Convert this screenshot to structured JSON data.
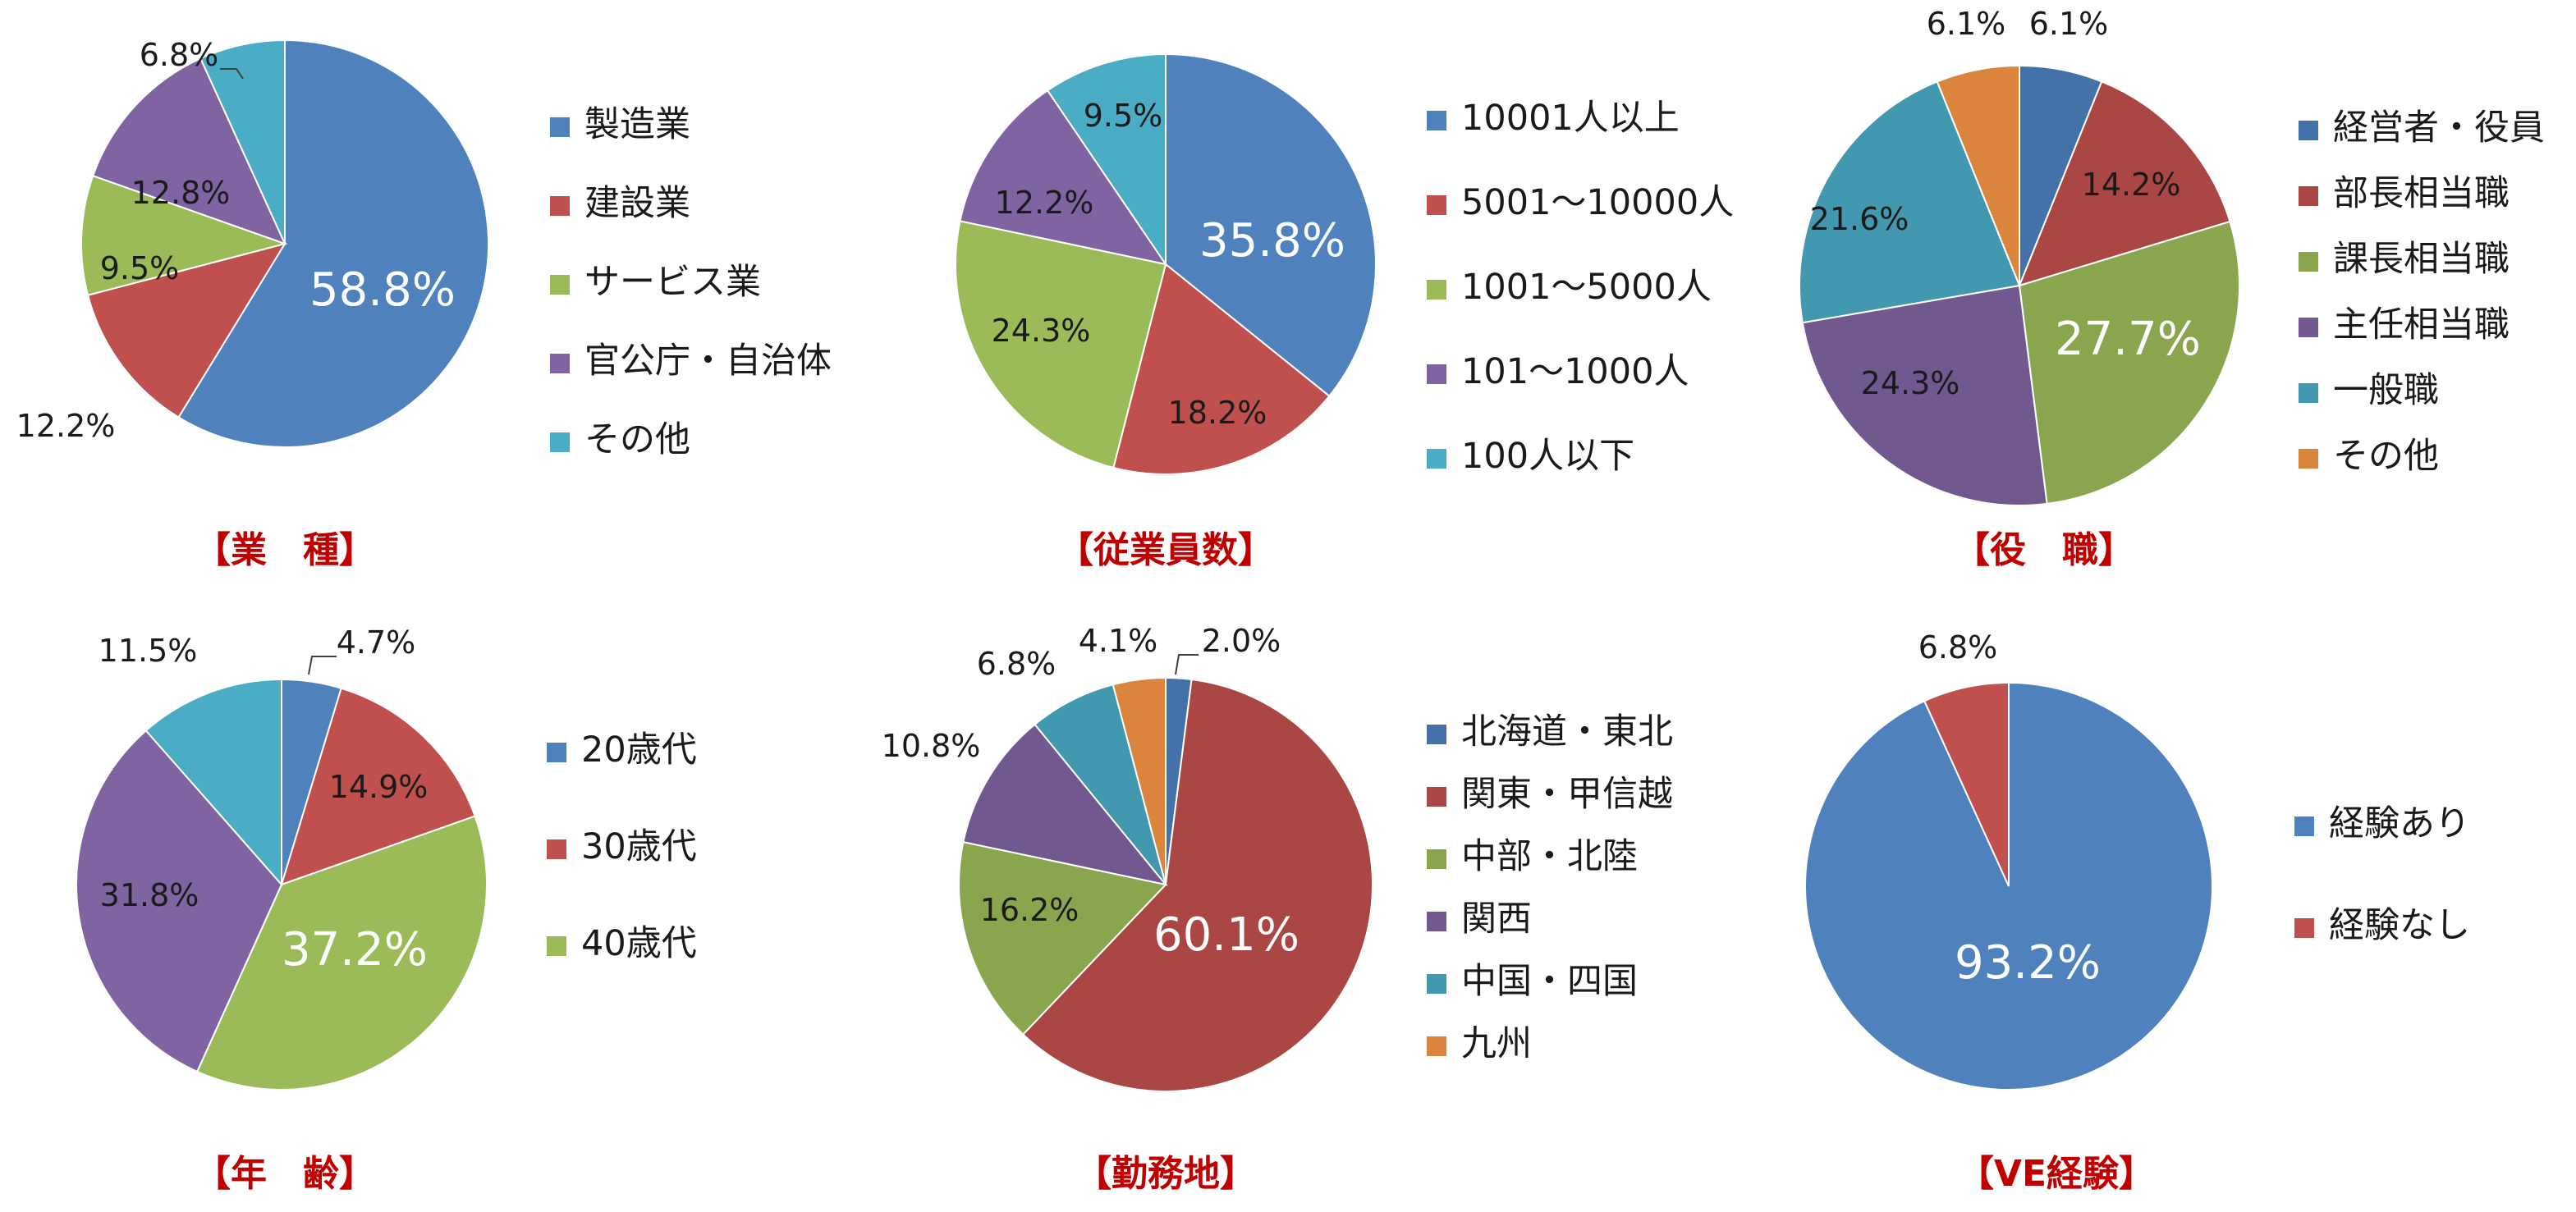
{
  "chart_data": [
    {
      "type": "pie",
      "title": "【業　種】",
      "start": "top-clockwise",
      "legend_position": "right",
      "series": [
        {
          "name": "製造業",
          "value": 58.8,
          "label": "58.8%",
          "color": "#4f81bd"
        },
        {
          "name": "建設業",
          "value": 12.2,
          "label": "12.2%",
          "color": "#c0504d"
        },
        {
          "name": "サービス業",
          "value": 9.5,
          "label": "9.5%",
          "color": "#9bbb59"
        },
        {
          "name": "官公庁・自治体",
          "value": 12.8,
          "label": "12.8%",
          "color": "#8064a2"
        },
        {
          "name": "その他",
          "value": 6.8,
          "label": "6.8%",
          "color": "#4bacc6"
        }
      ]
    },
    {
      "type": "pie",
      "title": "【従業員数】",
      "start": "top-clockwise",
      "legend_position": "right",
      "series": [
        {
          "name": "10001人以上",
          "value": 35.8,
          "label": "35.8%",
          "color": "#4f81bd"
        },
        {
          "name": "5001～10000人",
          "value": 18.2,
          "label": "18.2%",
          "color": "#c0504d"
        },
        {
          "name": "1001～5000人",
          "value": 24.3,
          "label": "24.3%",
          "color": "#9bbb59"
        },
        {
          "name": "101～1000人",
          "value": 12.2,
          "label": "12.2%",
          "color": "#8064a2"
        },
        {
          "name": "100人以下",
          "value": 9.5,
          "label": "9.5%",
          "color": "#4bacc6"
        }
      ]
    },
    {
      "type": "pie",
      "title": "【役　職】",
      "start": "top-clockwise",
      "legend_position": "right",
      "series": [
        {
          "name": "経営者・役員",
          "value": 6.1,
          "label": "6.1%",
          "color": "#4472a8"
        },
        {
          "name": "部長相当職",
          "value": 14.2,
          "label": "14.2%",
          "color": "#aa4643"
        },
        {
          "name": "課長相当職",
          "value": 27.7,
          "label": "27.7%",
          "color": "#89a54e"
        },
        {
          "name": "主任相当職",
          "value": 24.3,
          "label": "24.3%",
          "color": "#71588f"
        },
        {
          "name": "一般職",
          "value": 21.6,
          "label": "21.6%",
          "color": "#4198af"
        },
        {
          "name": "その他",
          "value": 6.1,
          "label": "6.1%",
          "color": "#db843d"
        }
      ]
    },
    {
      "type": "pie",
      "title": "【年　齢】",
      "start": "top-clockwise",
      "legend_position": "right",
      "series": [
        {
          "name": "20歳代",
          "value": 4.7,
          "label": "4.7%",
          "color": "#4f81bd"
        },
        {
          "name": "30歳代",
          "value": 14.9,
          "label": "14.9%",
          "color": "#c0504d"
        },
        {
          "name": "40歳代",
          "value": 37.2,
          "label": "37.2%",
          "color": "#9bbb59"
        },
        {
          "name": "",
          "value": 31.8,
          "label": "31.8%",
          "color": "#8064a2"
        },
        {
          "name": "",
          "value": 11.5,
          "label": "11.5%",
          "color": "#4bacc6"
        }
      ]
    },
    {
      "type": "pie",
      "title": "【勤務地】",
      "start": "top-clockwise",
      "legend_position": "right",
      "series": [
        {
          "name": "北海道・東北",
          "value": 2.0,
          "label": "2.0%",
          "color": "#4472a8"
        },
        {
          "name": "関東・甲信越",
          "value": 60.1,
          "label": "60.1%",
          "color": "#aa4643"
        },
        {
          "name": "中部・北陸",
          "value": 16.2,
          "label": "16.2%",
          "color": "#89a54e"
        },
        {
          "name": "関西",
          "value": 10.8,
          "label": "10.8%",
          "color": "#71588f"
        },
        {
          "name": "中国・四国",
          "value": 6.8,
          "label": "6.8%",
          "color": "#4198af"
        },
        {
          "name": "九州",
          "value": 4.1,
          "label": "4.1%",
          "color": "#db843d"
        }
      ]
    },
    {
      "type": "pie",
      "title": "【VE経験】",
      "start": "top-clockwise",
      "legend_position": "right",
      "series": [
        {
          "name": "経験あり",
          "value": 93.2,
          "label": "93.2%",
          "color": "#4f81bd"
        },
        {
          "name": "経験なし",
          "value": 6.8,
          "label": "6.8%",
          "color": "#c0504d"
        }
      ]
    }
  ]
}
